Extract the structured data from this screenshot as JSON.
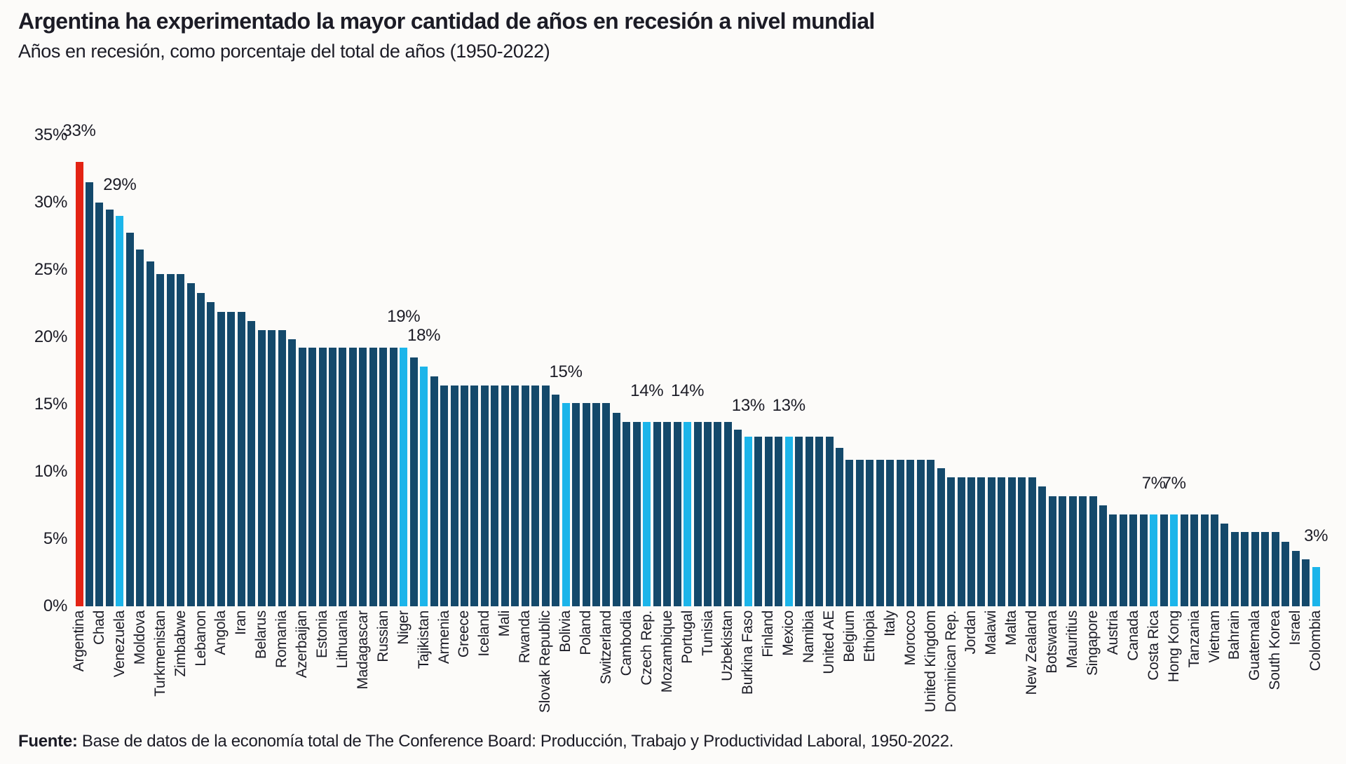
{
  "title": "Argentina ha experimentado la mayor cantidad de años en recesión a nivel mundial",
  "subtitle": "Años en recesión, como porcentaje del total de años (1950-2022)",
  "source": {
    "prefix": "Fuente:",
    "text": " Base de datos de la economía total de The Conference Board: Producción, Trabajo y Productividad Laboral, 1950-2022."
  },
  "colors": {
    "bar_default": "#14496b",
    "bar_highlight": "#1cb5ea",
    "bar_first": "#e32314",
    "text": "#1c1c26",
    "background": "#fcfbf9"
  },
  "chart_data": {
    "type": "bar",
    "title": "Argentina ha experimentado la mayor cantidad de años en recesión a nivel mundial",
    "subtitle": "Años en recesión, como porcentaje del total de años (1950-2022)",
    "xlabel": "",
    "ylabel": "",
    "ylim": [
      0,
      35
    ],
    "grid": false,
    "yticks": [
      {
        "label": "35%",
        "value": 35
      },
      {
        "label": "30%",
        "value": 30
      },
      {
        "label": "25%",
        "value": 25
      },
      {
        "label": "20%",
        "value": 20
      },
      {
        "label": "15%",
        "value": 15
      },
      {
        "label": "10%",
        "value": 10
      },
      {
        "label": "5%",
        "value": 5
      },
      {
        "label": "0%",
        "value": 0
      }
    ],
    "has_unlabeled_intermediate_bars": true,
    "bars": [
      {
        "name": "Argentina",
        "value": 33,
        "highlight": "red",
        "data_label": "33%"
      },
      {
        "name": "Chad",
        "value": 30
      },
      {
        "name": "Venezuela",
        "value": 29,
        "highlight": "blue",
        "data_label": "29%"
      },
      {
        "name": "Moldova",
        "value": 26.5
      },
      {
        "name": "Turkmenistan",
        "value": 24.7
      },
      {
        "name": "Zimbabwe",
        "value": 24.7
      },
      {
        "name": "Lebanon",
        "value": 23.3
      },
      {
        "name": "Angola",
        "value": 21.9
      },
      {
        "name": "Iran",
        "value": 21.9
      },
      {
        "name": "Belarus",
        "value": 20.5
      },
      {
        "name": "Romania",
        "value": 20.5
      },
      {
        "name": "Azerbaijan",
        "value": 19.2
      },
      {
        "name": "Estonia",
        "value": 19.2
      },
      {
        "name": "Lithuania",
        "value": 19.2
      },
      {
        "name": "Madagascar",
        "value": 19.2
      },
      {
        "name": "Russian",
        "value": 19.2
      },
      {
        "name": "Niger",
        "value": 19.2,
        "highlight": "blue",
        "data_label": "19%"
      },
      {
        "name": "Tajikistan",
        "value": 17.8,
        "highlight": "blue",
        "data_label": "18%"
      },
      {
        "name": "Armenia",
        "value": 16.4
      },
      {
        "name": "Greece",
        "value": 16.4
      },
      {
        "name": "Iceland",
        "value": 16.4
      },
      {
        "name": "Mali",
        "value": 16.4
      },
      {
        "name": "Rwanda",
        "value": 16.4
      },
      {
        "name": "Slovak Republic",
        "value": 16.4
      },
      {
        "name": "Bolivia",
        "value": 15.1,
        "highlight": "blue",
        "data_label": "15%"
      },
      {
        "name": "Poland",
        "value": 15.1
      },
      {
        "name": "Switzerland",
        "value": 15.1
      },
      {
        "name": "Cambodia",
        "value": 13.7
      },
      {
        "name": "Czech Rep.",
        "value": 13.7,
        "highlight": "blue",
        "data_label": "14%"
      },
      {
        "name": "Mozambique",
        "value": 13.7
      },
      {
        "name": "Portugal",
        "value": 13.7,
        "highlight": "blue",
        "data_label": "14%"
      },
      {
        "name": "Tunisia",
        "value": 13.7
      },
      {
        "name": "Uzbekistan",
        "value": 13.7
      },
      {
        "name": "Burkina Faso",
        "value": 12.6,
        "highlight": "blue",
        "data_label": "13%"
      },
      {
        "name": "Finland",
        "value": 12.6
      },
      {
        "name": "Mexico",
        "value": 12.6,
        "highlight": "blue",
        "data_label": "13%"
      },
      {
        "name": "Namibia",
        "value": 12.6
      },
      {
        "name": "United AE",
        "value": 12.6
      },
      {
        "name": "Belgium",
        "value": 10.9
      },
      {
        "name": "Ethiopia",
        "value": 10.9
      },
      {
        "name": "Italy",
        "value": 10.9
      },
      {
        "name": "Morocco",
        "value": 10.9
      },
      {
        "name": "United Kingdom",
        "value": 10.9
      },
      {
        "name": "Dominican Rep.",
        "value": 9.6
      },
      {
        "name": "Jordan",
        "value": 9.6
      },
      {
        "name": "Malawi",
        "value": 9.6
      },
      {
        "name": "Malta",
        "value": 9.6
      },
      {
        "name": "New Zealand",
        "value": 9.6
      },
      {
        "name": "Botswana",
        "value": 8.2
      },
      {
        "name": "Mauritius",
        "value": 8.2
      },
      {
        "name": "Singapore",
        "value": 8.2
      },
      {
        "name": "Austria",
        "value": 6.8
      },
      {
        "name": "Canada",
        "value": 6.8
      },
      {
        "name": "Costa Rica",
        "value": 6.8,
        "highlight": "blue",
        "data_label": "7%"
      },
      {
        "name": "Hong Kong",
        "value": 6.8,
        "highlight": "blue",
        "data_label": "7%"
      },
      {
        "name": "Tanzania",
        "value": 6.8
      },
      {
        "name": "Vietnam",
        "value": 6.8
      },
      {
        "name": "Bahrain",
        "value": 5.5
      },
      {
        "name": "Guatemala",
        "value": 5.5
      },
      {
        "name": "South Korea",
        "value": 5.5
      },
      {
        "name": "Israel",
        "value": 4.1
      },
      {
        "name": "Colombia",
        "value": 2.9,
        "highlight": "blue",
        "data_label": "3%"
      }
    ]
  }
}
